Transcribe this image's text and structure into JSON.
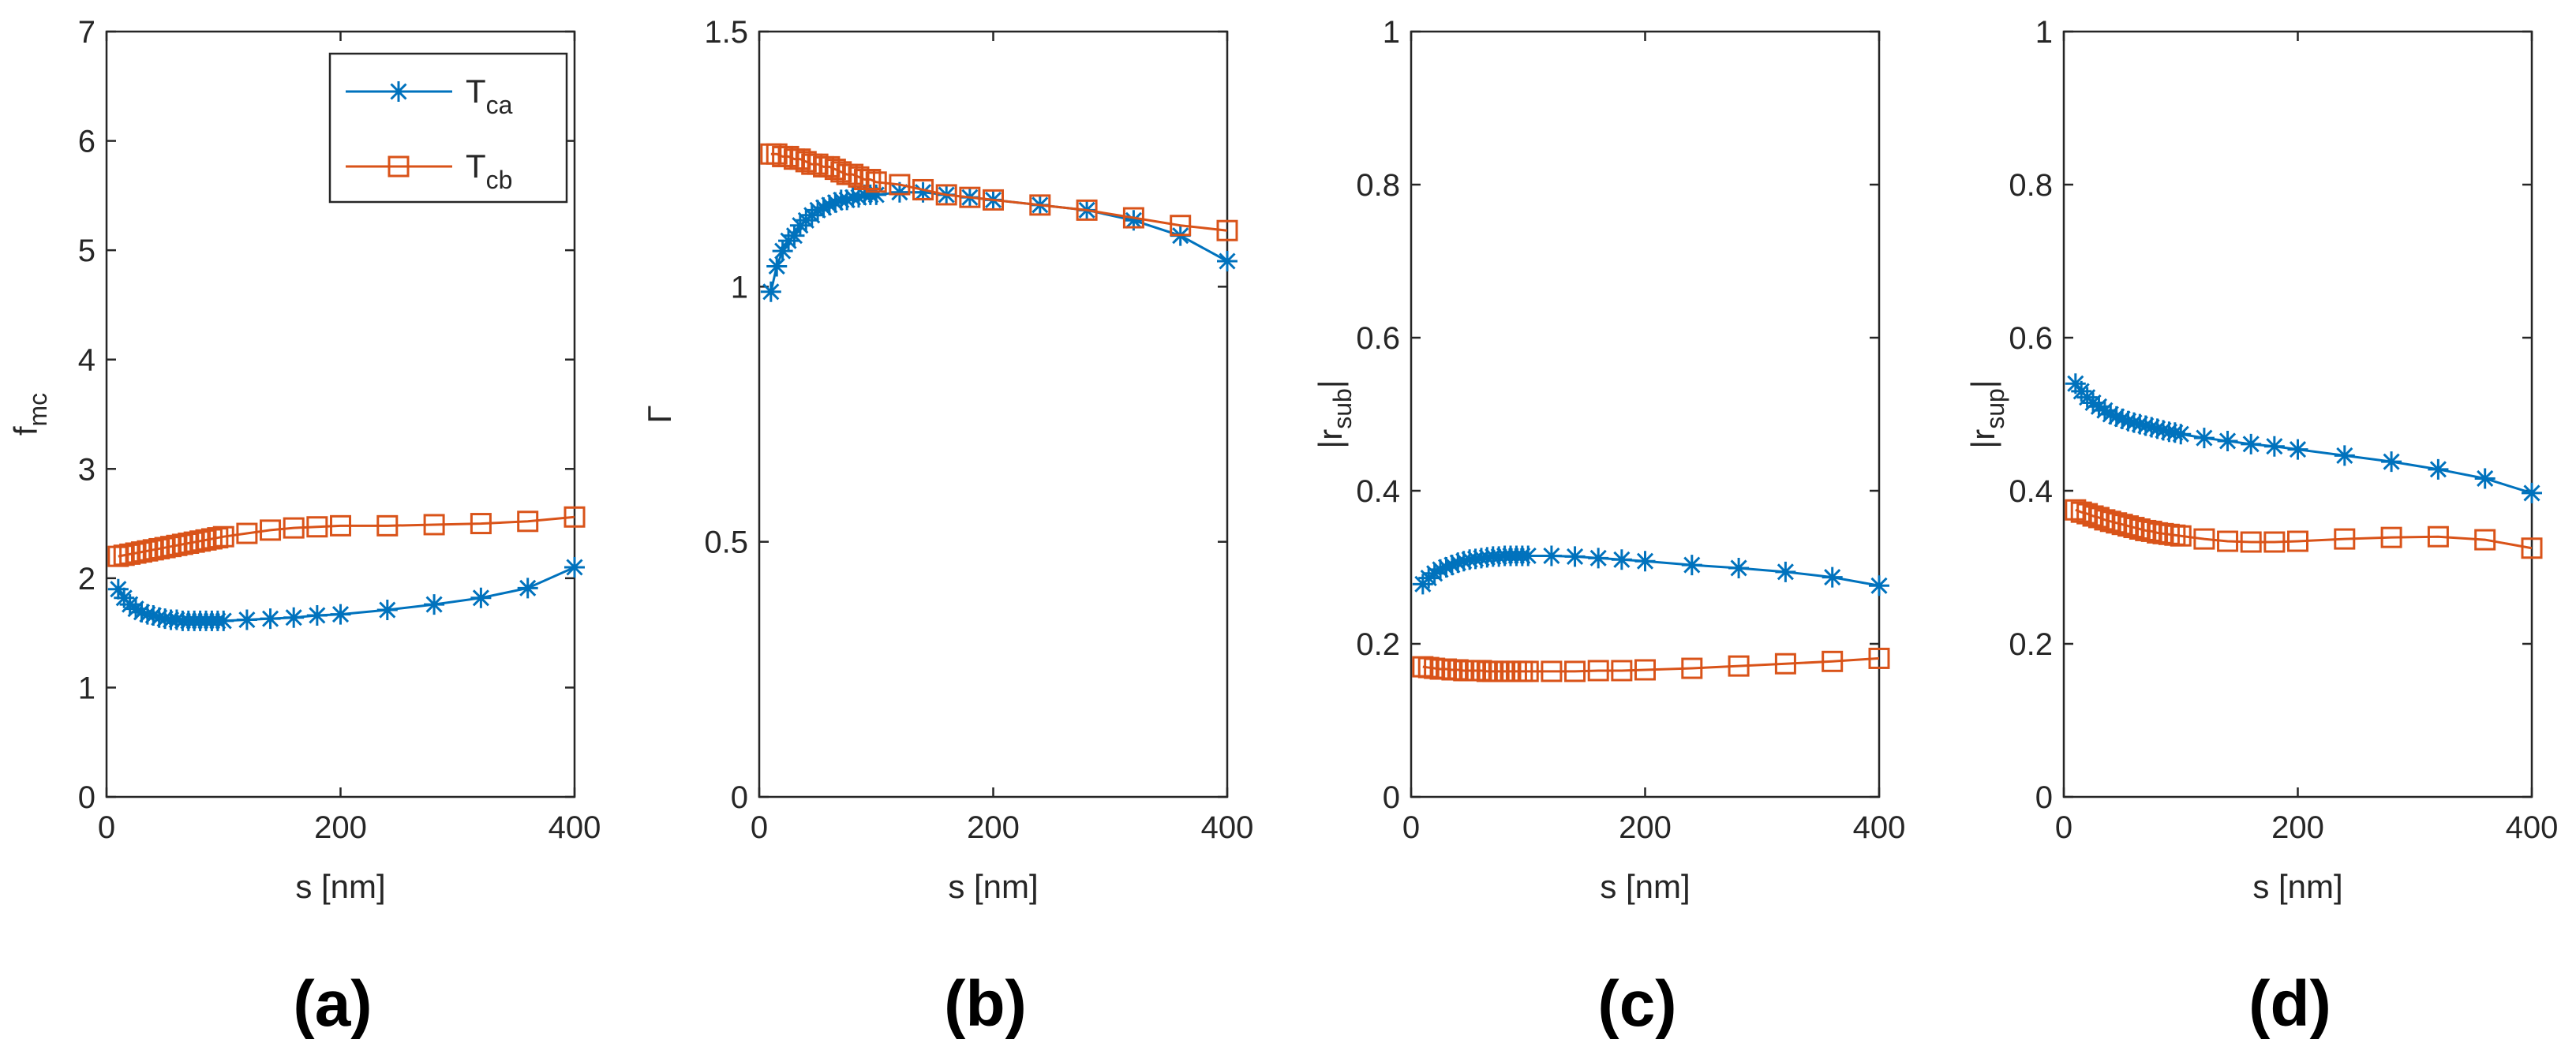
{
  "figure": {
    "panel_letters": [
      "(a)",
      "(b)",
      "(c)",
      "(d)"
    ]
  },
  "legend": {
    "entries": [
      {
        "base": "T",
        "sub": "ca",
        "series_color": "#0072BD",
        "marker": "asterisk"
      },
      {
        "base": "T",
        "sub": "cb",
        "series_color": "#D95319",
        "marker": "square"
      }
    ]
  },
  "colors": {
    "series_a": "#0072BD",
    "series_b": "#D95319",
    "axis": "#262626"
  },
  "chart_data": [
    {
      "type": "line",
      "caption": "(a)",
      "xlabel": "s [nm]",
      "ylabel": {
        "base": "f",
        "sub": "mc",
        "prefix": "",
        "suffix": ""
      },
      "xlim": [
        0,
        400
      ],
      "ylim": [
        0,
        7
      ],
      "xticks": [
        "0",
        "200",
        "400"
      ],
      "yticks": [
        "0",
        "1",
        "2",
        "3",
        "4",
        "5",
        "6",
        "7"
      ],
      "x": [
        10,
        15,
        20,
        25,
        30,
        35,
        40,
        45,
        50,
        55,
        60,
        65,
        70,
        75,
        80,
        85,
        90,
        95,
        100,
        120,
        140,
        160,
        180,
        200,
        240,
        280,
        320,
        360,
        400
      ],
      "series": [
        {
          "name": "T_ca",
          "values": [
            1.9,
            1.82,
            1.76,
            1.72,
            1.69,
            1.67,
            1.66,
            1.64,
            1.63,
            1.62,
            1.62,
            1.61,
            1.61,
            1.61,
            1.61,
            1.61,
            1.61,
            1.61,
            1.61,
            1.62,
            1.63,
            1.64,
            1.66,
            1.67,
            1.71,
            1.76,
            1.82,
            1.91,
            2.1
          ]
        },
        {
          "name": "T_cb",
          "values": [
            2.2,
            2.21,
            2.22,
            2.23,
            2.24,
            2.25,
            2.26,
            2.27,
            2.28,
            2.29,
            2.3,
            2.31,
            2.32,
            2.33,
            2.34,
            2.35,
            2.36,
            2.37,
            2.38,
            2.41,
            2.44,
            2.46,
            2.47,
            2.48,
            2.48,
            2.49,
            2.5,
            2.52,
            2.56
          ]
        }
      ]
    },
    {
      "type": "line",
      "caption": "(b)",
      "xlabel": "s [nm]",
      "ylabel": {
        "base": "Γ",
        "sub": "",
        "prefix": "",
        "suffix": ""
      },
      "xlim": [
        0,
        400
      ],
      "ylim": [
        0,
        1.5
      ],
      "xticks": [
        "0",
        "200",
        "400"
      ],
      "yticks": [
        "0",
        "0.5",
        "1",
        "1.5"
      ],
      "x": [
        10,
        15,
        20,
        25,
        30,
        35,
        40,
        45,
        50,
        55,
        60,
        65,
        70,
        75,
        80,
        85,
        90,
        95,
        100,
        120,
        140,
        160,
        180,
        200,
        240,
        280,
        320,
        360,
        400
      ],
      "series": [
        {
          "name": "T_ca",
          "values": [
            0.99,
            1.04,
            1.07,
            1.09,
            1.1,
            1.12,
            1.13,
            1.14,
            1.15,
            1.155,
            1.16,
            1.165,
            1.17,
            1.17,
            1.175,
            1.175,
            1.18,
            1.18,
            1.18,
            1.185,
            1.185,
            1.18,
            1.175,
            1.17,
            1.16,
            1.15,
            1.13,
            1.1,
            1.05
          ]
        },
        {
          "name": "T_cb",
          "values": [
            1.26,
            1.26,
            1.255,
            1.255,
            1.25,
            1.25,
            1.245,
            1.24,
            1.24,
            1.235,
            1.235,
            1.23,
            1.225,
            1.22,
            1.22,
            1.215,
            1.21,
            1.21,
            1.205,
            1.2,
            1.19,
            1.18,
            1.175,
            1.17,
            1.16,
            1.15,
            1.135,
            1.12,
            1.11
          ]
        }
      ]
    },
    {
      "type": "line",
      "caption": "(c)",
      "xlabel": "s [nm]",
      "ylabel": {
        "base": "r",
        "sub": "sub",
        "prefix": "|",
        "suffix": "|"
      },
      "xlim": [
        0,
        400
      ],
      "ylim": [
        0,
        1
      ],
      "xticks": [
        "0",
        "200",
        "400"
      ],
      "yticks": [
        "0",
        "0.2",
        "0.4",
        "0.6",
        "0.8",
        "1"
      ],
      "x": [
        10,
        15,
        20,
        25,
        30,
        35,
        40,
        45,
        50,
        55,
        60,
        65,
        70,
        75,
        80,
        85,
        90,
        95,
        100,
        120,
        140,
        160,
        180,
        200,
        240,
        280,
        320,
        360,
        400
      ],
      "series": [
        {
          "name": "T_ca",
          "values": [
            0.278,
            0.286,
            0.292,
            0.297,
            0.3,
            0.303,
            0.306,
            0.308,
            0.31,
            0.311,
            0.312,
            0.313,
            0.314,
            0.314,
            0.315,
            0.315,
            0.315,
            0.315,
            0.315,
            0.315,
            0.314,
            0.312,
            0.31,
            0.308,
            0.303,
            0.299,
            0.294,
            0.287,
            0.276
          ]
        },
        {
          "name": "T_cb",
          "values": [
            0.17,
            0.169,
            0.168,
            0.167,
            0.167,
            0.166,
            0.166,
            0.165,
            0.165,
            0.165,
            0.165,
            0.164,
            0.164,
            0.164,
            0.164,
            0.164,
            0.164,
            0.164,
            0.164,
            0.164,
            0.164,
            0.165,
            0.165,
            0.166,
            0.168,
            0.171,
            0.174,
            0.177,
            0.181
          ]
        }
      ]
    },
    {
      "type": "line",
      "caption": "(d)",
      "xlabel": "s [nm]",
      "ylabel": {
        "base": "r",
        "sub": "sup",
        "prefix": "|",
        "suffix": "|"
      },
      "xlim": [
        0,
        400
      ],
      "ylim": [
        0,
        1
      ],
      "xticks": [
        "0",
        "200",
        "400"
      ],
      "yticks": [
        "0",
        "0.2",
        "0.4",
        "0.6",
        "0.8",
        "1"
      ],
      "x": [
        10,
        15,
        20,
        25,
        30,
        35,
        40,
        45,
        50,
        55,
        60,
        65,
        70,
        75,
        80,
        85,
        90,
        95,
        100,
        120,
        140,
        160,
        180,
        200,
        240,
        280,
        320,
        360,
        400
      ],
      "series": [
        {
          "name": "T_ca",
          "values": [
            0.54,
            0.53,
            0.522,
            0.515,
            0.51,
            0.505,
            0.5,
            0.497,
            0.494,
            0.491,
            0.489,
            0.487,
            0.485,
            0.483,
            0.481,
            0.479,
            0.477,
            0.476,
            0.474,
            0.469,
            0.465,
            0.461,
            0.458,
            0.454,
            0.446,
            0.438,
            0.428,
            0.416,
            0.397
          ]
        },
        {
          "name": "T_cb",
          "values": [
            0.375,
            0.372,
            0.37,
            0.367,
            0.365,
            0.362,
            0.36,
            0.358,
            0.356,
            0.354,
            0.352,
            0.35,
            0.348,
            0.347,
            0.345,
            0.344,
            0.343,
            0.342,
            0.341,
            0.337,
            0.334,
            0.333,
            0.333,
            0.334,
            0.337,
            0.339,
            0.34,
            0.336,
            0.325
          ]
        }
      ]
    }
  ]
}
